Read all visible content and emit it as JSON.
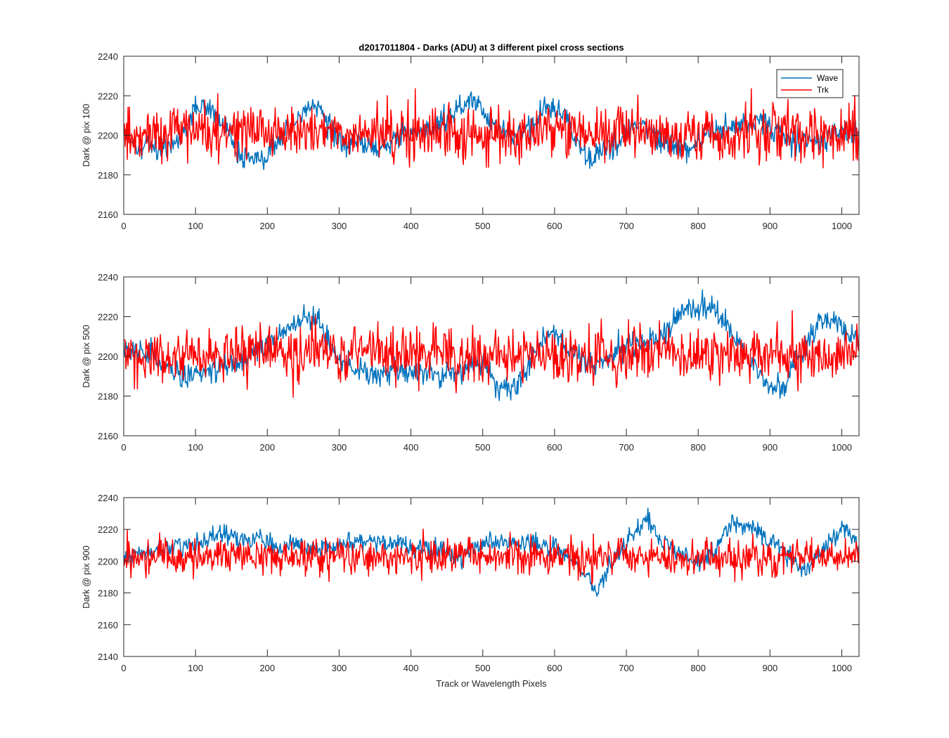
{
  "figure": {
    "title": "d2017011804 - Darks (ADU) at 3 different pixel cross sections",
    "background": "#ffffff"
  },
  "chart_data": [
    {
      "type": "line",
      "title": "d2017011804 - Darks (ADU) at 3 different pixel cross sections",
      "xlabel": "",
      "ylabel": "Dark @ pix 100",
      "xlim": [
        0,
        1024
      ],
      "ylim": [
        2160,
        2240
      ],
      "xticks": [
        0,
        100,
        200,
        300,
        400,
        500,
        600,
        700,
        800,
        900,
        1000
      ],
      "yticks": [
        2160,
        2180,
        2200,
        2220,
        2240
      ],
      "grid": false,
      "legend": "top-right",
      "series": [
        {
          "name": "Wave",
          "color": "#0072BD",
          "trend": [
            [
              0,
              2200
            ],
            [
              20,
              2195
            ],
            [
              50,
              2193
            ],
            [
              80,
              2198
            ],
            [
              100,
              2213
            ],
            [
              120,
              2215
            ],
            [
              140,
              2205
            ],
            [
              160,
              2190
            ],
            [
              180,
              2187
            ],
            [
              200,
              2190
            ],
            [
              220,
              2198
            ],
            [
              250,
              2212
            ],
            [
              270,
              2215
            ],
            [
              290,
              2204
            ],
            [
              300,
              2197
            ],
            [
              330,
              2195
            ],
            [
              360,
              2193
            ],
            [
              390,
              2200
            ],
            [
              420,
              2203
            ],
            [
              450,
              2208
            ],
            [
              470,
              2215
            ],
            [
              490,
              2217
            ],
            [
              510,
              2208
            ],
            [
              540,
              2200
            ],
            [
              570,
              2207
            ],
            [
              590,
              2214
            ],
            [
              610,
              2212
            ],
            [
              630,
              2198
            ],
            [
              650,
              2189
            ],
            [
              670,
              2192
            ],
            [
              700,
              2202
            ],
            [
              720,
              2207
            ],
            [
              750,
              2196
            ],
            [
              770,
              2194
            ],
            [
              790,
              2194
            ],
            [
              800,
              2198
            ],
            [
              830,
              2203
            ],
            [
              860,
              2206
            ],
            [
              890,
              2207
            ],
            [
              910,
              2202
            ],
            [
              940,
              2196
            ],
            [
              970,
              2197
            ],
            [
              1000,
              2201
            ],
            [
              1024,
              2200
            ]
          ],
          "noise": 5
        },
        {
          "name": "Trk",
          "color": "#FF0000",
          "trend": [
            [
              0,
              2201
            ],
            [
              1024,
              2201
            ]
          ],
          "noise": 11
        }
      ]
    },
    {
      "type": "line",
      "xlabel": "",
      "ylabel": "Dark @ pix 500",
      "xlim": [
        0,
        1024
      ],
      "ylim": [
        2160,
        2240
      ],
      "xticks": [
        0,
        100,
        200,
        300,
        400,
        500,
        600,
        700,
        800,
        900,
        1000
      ],
      "yticks": [
        2160,
        2180,
        2200,
        2220,
        2240
      ],
      "grid": false,
      "series": [
        {
          "name": "Wave",
          "color": "#0072BD",
          "trend": [
            [
              0,
              2203
            ],
            [
              40,
              2200
            ],
            [
              80,
              2190
            ],
            [
              110,
              2192
            ],
            [
              150,
              2196
            ],
            [
              190,
              2203
            ],
            [
              220,
              2210
            ],
            [
              250,
              2220
            ],
            [
              270,
              2217
            ],
            [
              290,
              2203
            ],
            [
              320,
              2193
            ],
            [
              350,
              2190
            ],
            [
              380,
              2193
            ],
            [
              410,
              2192
            ],
            [
              440,
              2190
            ],
            [
              470,
              2193
            ],
            [
              500,
              2198
            ],
            [
              520,
              2186
            ],
            [
              540,
              2183
            ],
            [
              560,
              2193
            ],
            [
              580,
              2208
            ],
            [
              600,
              2210
            ],
            [
              630,
              2202
            ],
            [
              650,
              2195
            ],
            [
              680,
              2200
            ],
            [
              700,
              2204
            ],
            [
              730,
              2207
            ],
            [
              760,
              2214
            ],
            [
              780,
              2224
            ],
            [
              800,
              2225
            ],
            [
              820,
              2224
            ],
            [
              840,
              2216
            ],
            [
              860,
              2205
            ],
            [
              880,
              2193
            ],
            [
              900,
              2184
            ],
            [
              920,
              2186
            ],
            [
              940,
              2200
            ],
            [
              960,
              2212
            ],
            [
              980,
              2220
            ],
            [
              1000,
              2215
            ],
            [
              1024,
              2207
            ]
          ],
          "noise": 5
        },
        {
          "name": "Trk",
          "color": "#FF0000",
          "trend": [
            [
              0,
              2201
            ],
            [
              1024,
              2201
            ]
          ],
          "noise": 11
        }
      ]
    },
    {
      "type": "line",
      "xlabel": "Track or Wavelength Pixels",
      "ylabel": "Dark @ pix 900",
      "xlim": [
        0,
        1024
      ],
      "ylim": [
        2140,
        2240
      ],
      "xticks": [
        0,
        100,
        200,
        300,
        400,
        500,
        600,
        700,
        800,
        900,
        1000
      ],
      "yticks": [
        2140,
        2160,
        2180,
        2200,
        2220,
        2240
      ],
      "grid": false,
      "series": [
        {
          "name": "Wave",
          "color": "#0072BD",
          "trend": [
            [
              0,
              2200
            ],
            [
              30,
              2205
            ],
            [
              60,
              2208
            ],
            [
              100,
              2211
            ],
            [
              140,
              2217
            ],
            [
              170,
              2214
            ],
            [
              200,
              2212
            ],
            [
              240,
              2210
            ],
            [
              270,
              2208
            ],
            [
              300,
              2210
            ],
            [
              330,
              2213
            ],
            [
              360,
              2212
            ],
            [
              390,
              2210
            ],
            [
              420,
              2208
            ],
            [
              450,
              2205
            ],
            [
              470,
              2202
            ],
            [
              490,
              2206
            ],
            [
              510,
              2212
            ],
            [
              540,
              2210
            ],
            [
              570,
              2212
            ],
            [
              600,
              2208
            ],
            [
              620,
              2203
            ],
            [
              640,
              2192
            ],
            [
              660,
              2182
            ],
            [
              680,
              2200
            ],
            [
              710,
              2218
            ],
            [
              730,
              2224
            ],
            [
              750,
              2212
            ],
            [
              780,
              2203
            ],
            [
              800,
              2197
            ],
            [
              820,
              2206
            ],
            [
              850,
              2224
            ],
            [
              870,
              2222
            ],
            [
              890,
              2216
            ],
            [
              910,
              2210
            ],
            [
              930,
              2203
            ],
            [
              950,
              2193
            ],
            [
              970,
              2205
            ],
            [
              1000,
              2222
            ],
            [
              1024,
              2210
            ]
          ],
          "noise": 5
        },
        {
          "name": "Trk",
          "color": "#FF0000",
          "trend": [
            [
              0,
              2203
            ],
            [
              1024,
              2203
            ]
          ],
          "noise": 9
        }
      ]
    }
  ]
}
